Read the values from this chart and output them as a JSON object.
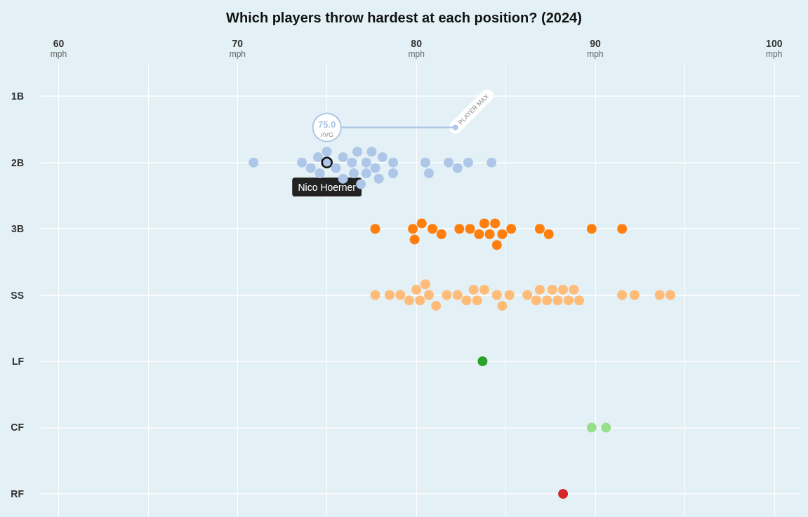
{
  "chart_data": {
    "type": "scatter",
    "orientation": "horizontal",
    "title": "Which players throw hardest at each position? (2024)",
    "categories": [
      "1B",
      "2B",
      "3B",
      "SS",
      "LF",
      "CF",
      "RF"
    ],
    "series": [
      {
        "color": "#aec7e8",
        "x": [
          "2B",
          "2B",
          "2B",
          "2B",
          "2B",
          "2B",
          "2B",
          "2B",
          "2B",
          "2B",
          "2B",
          "2B",
          "2B",
          "2B",
          "2B",
          "2B",
          "2B",
          "2B",
          "2B",
          "2B",
          "2B",
          "2B",
          "2B",
          "2B",
          "2B",
          "2B",
          "2B",
          "2B"
        ],
        "values": [
          70.9,
          73.6,
          74.1,
          74.5,
          74.6,
          75.0,
          75.0,
          75.5,
          75.9,
          75.9,
          76.4,
          76.5,
          76.7,
          76.9,
          77.2,
          77.2,
          77.5,
          77.7,
          77.9,
          78.1,
          78.7,
          78.7,
          80.5,
          80.7,
          81.8,
          82.3,
          82.9,
          84.2
        ]
      },
      {
        "color": "#ff7f0e",
        "x": [
          "3B",
          "3B",
          "3B",
          "3B",
          "3B",
          "3B",
          "3B",
          "3B",
          "3B",
          "3B",
          "3B",
          "3B",
          "3B",
          "3B",
          "3B",
          "3B",
          "3B",
          "3B",
          "3B"
        ],
        "values": [
          77.7,
          79.8,
          79.9,
          80.3,
          80.9,
          81.4,
          82.4,
          83.0,
          83.5,
          83.8,
          84.1,
          84.4,
          84.5,
          84.8,
          85.3,
          86.9,
          87.4,
          89.8,
          91.5
        ]
      },
      {
        "color": "#ffbb78",
        "x": [
          "SS",
          "SS",
          "SS",
          "SS",
          "SS",
          "SS",
          "SS",
          "SS",
          "SS",
          "SS",
          "SS",
          "SS",
          "SS",
          "SS",
          "SS",
          "SS",
          "SS",
          "SS",
          "SS",
          "SS",
          "SS",
          "SS",
          "SS",
          "SS",
          "SS",
          "SS",
          "SS",
          "SS",
          "SS",
          "SS",
          "SS",
          "SS"
        ],
        "values": [
          77.7,
          78.5,
          79.1,
          79.6,
          80.0,
          80.2,
          80.5,
          80.7,
          81.1,
          81.7,
          82.3,
          82.8,
          83.2,
          83.4,
          83.8,
          84.5,
          84.8,
          85.2,
          86.2,
          86.7,
          86.9,
          87.3,
          87.6,
          87.9,
          88.2,
          88.5,
          88.8,
          89.1,
          91.5,
          92.2,
          93.6,
          94.2
        ]
      },
      {
        "color": "#2ca02c",
        "x": [
          "LF"
        ],
        "values": [
          83.7
        ]
      },
      {
        "color": "#98df8a",
        "x": [
          "CF",
          "CF"
        ],
        "values": [
          89.8,
          90.6
        ]
      },
      {
        "color": "#d62728",
        "x": [
          "RF"
        ],
        "values": [
          88.2
        ]
      }
    ],
    "xlim": [
      59,
      101.5
    ],
    "xticks": [
      {
        "value": 60,
        "label": "60\nmph"
      },
      {
        "value": 65,
        "label": null
      },
      {
        "value": 70,
        "label": "70\nmph"
      },
      {
        "value": 75,
        "label": null
      },
      {
        "value": 80,
        "label": "80\nmph"
      },
      {
        "value": 85,
        "label": null
      },
      {
        "value": 90,
        "label": "90\nmph"
      },
      {
        "value": 95,
        "label": null
      },
      {
        "value": 100,
        "label": "100\nmph"
      }
    ],
    "grid": true,
    "marker": "circle",
    "annotations": [
      "75.0",
      "AVG",
      "PLAYER MAX",
      {
        "text": "Nico Hoerner",
        "x": 75.0,
        "y": "2B"
      }
    ]
  }
}
